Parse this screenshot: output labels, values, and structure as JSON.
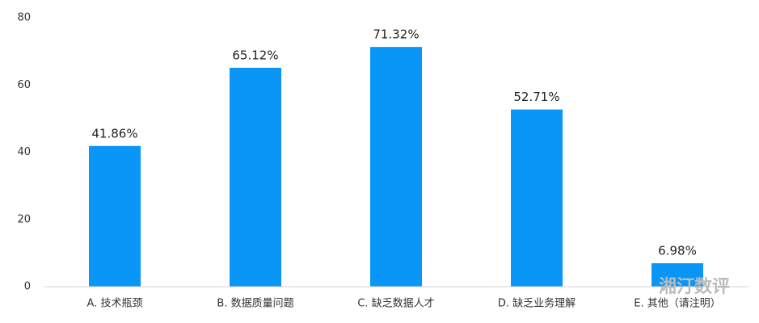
{
  "chart_data": {
    "type": "bar",
    "categories": [
      "A. 技术瓶颈",
      "B. 数据质量问题",
      "C. 缺乏数据人才",
      "D. 缺乏业务理解",
      "E. 其他（请注明）"
    ],
    "values": [
      41.86,
      65.12,
      71.32,
      52.71,
      6.98
    ],
    "value_labels": [
      "41.86%",
      "65.12%",
      "71.32%",
      "52.71%",
      "6.98%"
    ],
    "color": "#0a96f7",
    "ylim": [
      0,
      80
    ],
    "yticks": [
      0,
      20,
      40,
      60,
      80
    ],
    "grid": false,
    "watermark": "湘汀数评"
  }
}
